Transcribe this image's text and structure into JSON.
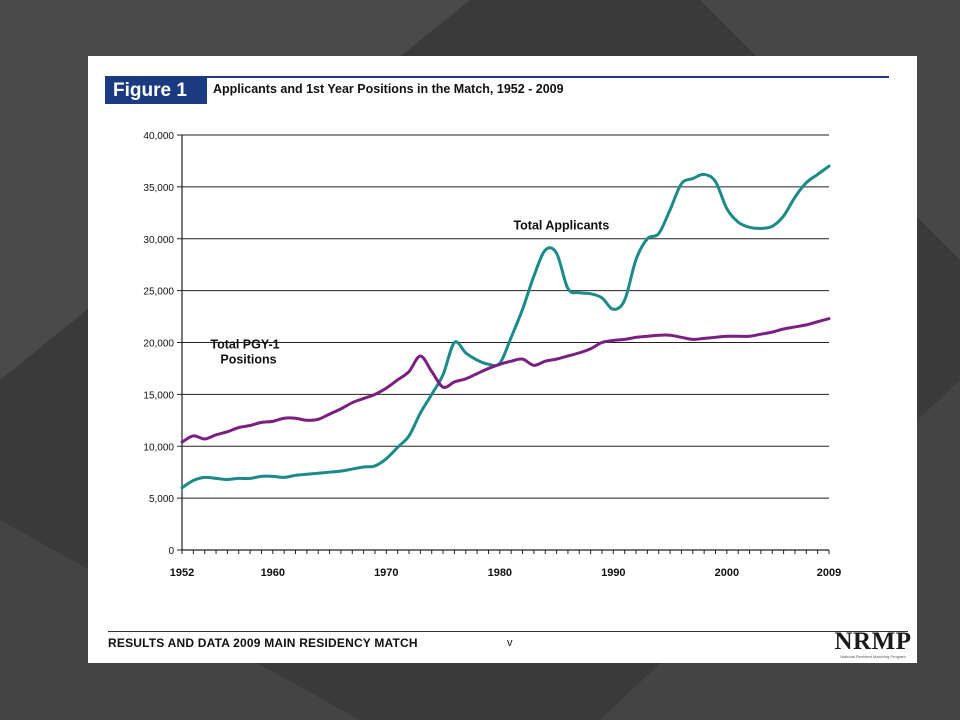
{
  "figure": {
    "tag": "Figure 1",
    "title": "Applicants and 1st Year Positions in the Match, 1952 - 2009"
  },
  "footer": {
    "text": "RESULTS AND DATA 2009 MAIN RESIDENCY MATCH",
    "page": "v",
    "logo": "NRMP",
    "logo_subtitle": "National Resident Matching Program"
  },
  "colors": {
    "applicants": "#1a8a8a",
    "positions": "#7b1f82",
    "header": "#1b3a82",
    "slide_bg": "#3c3c3c"
  },
  "chart_data": {
    "type": "line",
    "xlim": [
      1952,
      2009
    ],
    "ylim": [
      0,
      40000
    ],
    "x_ticks": [
      "1952",
      "1960",
      "1970",
      "1980",
      "1990",
      "2000",
      "2009"
    ],
    "y_ticks": [
      "0",
      "5,000",
      "10,000",
      "15,000",
      "20,000",
      "25,000",
      "30,000",
      "35,000",
      "40,000"
    ],
    "grid": true,
    "series": [
      {
        "name": "Total Applicants",
        "label_lines": [
          "Total Applicants"
        ],
        "label_at": [
          1981.2,
          30900
        ],
        "color": "#1a8a8a",
        "x": [
          1952,
          1953,
          1954,
          1955,
          1956,
          1957,
          1958,
          1959,
          1960,
          1961,
          1962,
          1963,
          1964,
          1965,
          1966,
          1967,
          1968,
          1969,
          1970,
          1971,
          1972,
          1973,
          1974,
          1975,
          1976,
          1977,
          1978,
          1979,
          1980,
          1981,
          1982,
          1983,
          1984,
          1985,
          1986,
          1987,
          1988,
          1989,
          1990,
          1991,
          1992,
          1993,
          1994,
          1995,
          1996,
          1997,
          1998,
          1999,
          2000,
          2001,
          2002,
          2003,
          2004,
          2005,
          2006,
          2007,
          2008,
          2009
        ],
        "values": [
          6000,
          6700,
          7000,
          6900,
          6800,
          6900,
          6900,
          7100,
          7100,
          7000,
          7200,
          7300,
          7400,
          7500,
          7600,
          7800,
          8000,
          8100,
          8800,
          9900,
          11000,
          13200,
          15000,
          16900,
          20000,
          19000,
          18300,
          17900,
          18000,
          20500,
          23200,
          26400,
          28900,
          28600,
          25200,
          24800,
          24700,
          24300,
          23200,
          24100,
          28000,
          30000,
          30500,
          32800,
          35300,
          35800,
          36200,
          35500,
          32900,
          31600,
          31100,
          31000,
          31200,
          32200,
          34000,
          35400,
          36200,
          37000
        ]
      },
      {
        "name": "Total PGY-1 Positions",
        "label_lines": [
          "Total PGY-1",
          "Positions"
        ],
        "label_at": [
          1954.5,
          19400
        ],
        "color": "#7b1f82",
        "x": [
          1952,
          1953,
          1954,
          1955,
          1956,
          1957,
          1958,
          1959,
          1960,
          1961,
          1962,
          1963,
          1964,
          1965,
          1966,
          1967,
          1968,
          1969,
          1970,
          1971,
          1972,
          1973,
          1974,
          1975,
          1976,
          1977,
          1978,
          1979,
          1980,
          1981,
          1982,
          1983,
          1984,
          1985,
          1986,
          1987,
          1988,
          1989,
          1990,
          1991,
          1992,
          1993,
          1994,
          1995,
          1996,
          1997,
          1998,
          1999,
          2000,
          2001,
          2002,
          2003,
          2004,
          2005,
          2006,
          2007,
          2008,
          2009
        ],
        "values": [
          10400,
          11000,
          10700,
          11100,
          11400,
          11800,
          12000,
          12300,
          12400,
          12700,
          12700,
          12500,
          12600,
          13100,
          13600,
          14200,
          14600,
          15000,
          15600,
          16400,
          17200,
          18700,
          17200,
          15700,
          16200,
          16500,
          17000,
          17500,
          17900,
          18200,
          18400,
          17800,
          18200,
          18400,
          18700,
          19000,
          19400,
          20000,
          20200,
          20300,
          20500,
          20600,
          20700,
          20700,
          20500,
          20300,
          20400,
          20500,
          20600,
          20600,
          20600,
          20800,
          21000,
          21300,
          21500,
          21700,
          22000,
          22300
        ]
      }
    ]
  }
}
